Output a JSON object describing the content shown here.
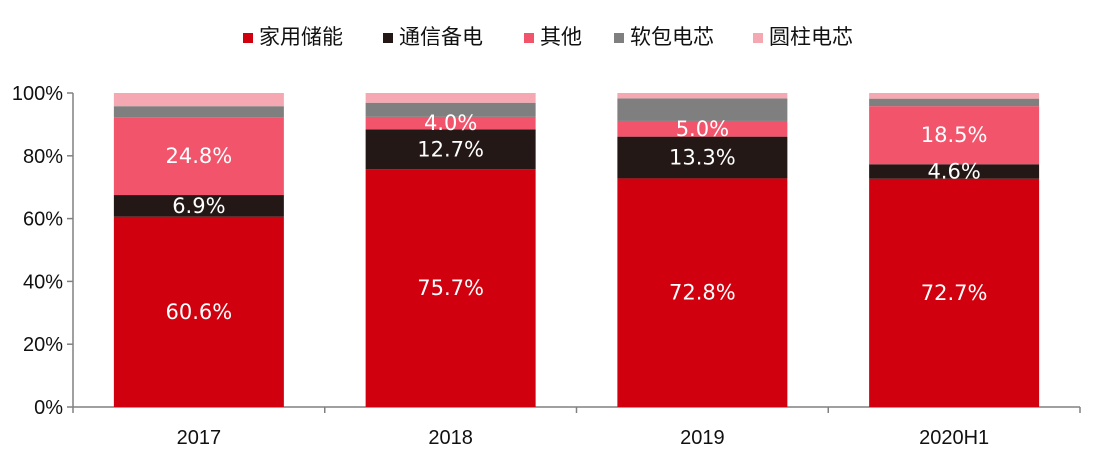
{
  "chart_data": {
    "type": "bar",
    "stacked": true,
    "categories": [
      "2017",
      "2018",
      "2019",
      "2020H1"
    ],
    "series": [
      {
        "name": "家用储能",
        "color": "#d0000e",
        "values": [
          60.6,
          75.7,
          72.8,
          72.7
        ],
        "labels": [
          "60.6%",
          "75.7%",
          "72.8%",
          "72.7%"
        ]
      },
      {
        "name": "通信备电",
        "color": "#231815",
        "values": [
          6.9,
          12.7,
          13.3,
          4.6
        ],
        "labels": [
          "6.9%",
          "12.7%",
          "13.3%",
          "4.6%"
        ]
      },
      {
        "name": "其他",
        "color": "#f2546b",
        "values": [
          24.8,
          4.0,
          5.0,
          18.5
        ],
        "labels": [
          "24.8%",
          "4.0%",
          "5.0%",
          "18.5%"
        ]
      },
      {
        "name": "软包电芯",
        "color": "#7f7f7f",
        "values": [
          3.5,
          4.5,
          7.2,
          2.4
        ],
        "labels": [
          "",
          "",
          "",
          ""
        ]
      },
      {
        "name": "圆柱电芯",
        "color": "#f5a8b1",
        "values": [
          4.2,
          3.1,
          1.7,
          1.8
        ],
        "labels": [
          "",
          "",
          "",
          ""
        ]
      }
    ],
    "yticks": [
      "0%",
      "20%",
      "40%",
      "60%",
      "80%",
      "100%"
    ],
    "ylim": [
      0,
      100
    ],
    "legend_position": "top-center",
    "grid": false,
    "title": "",
    "xlabel": "",
    "ylabel": ""
  }
}
